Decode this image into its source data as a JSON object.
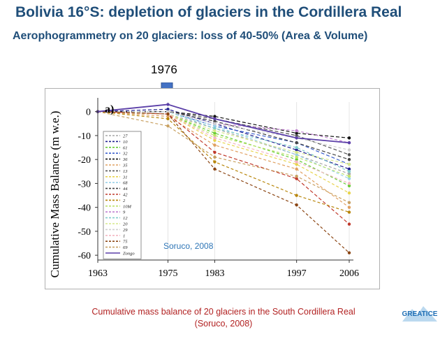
{
  "slide": {
    "title": "Bolivia  16°S:  depletion of glaciers in the Cordillera Real",
    "subtitle": "Aerophogrammetry  on 20 glaciers:  loss of 40-50%  (Area & Volume)",
    "marker_label": "1976",
    "caption_line1": "Cumulative mass balance of 20 glaciers in the South Cordillera Real",
    "caption_line2": "(Soruco, 2008)",
    "logo_text": "GREATICE"
  },
  "colors": {
    "title": "#1f4e79",
    "caption": "#b22222",
    "arrow": "#4472c4",
    "source": "#2e75b6"
  },
  "chart_data": {
    "type": "line",
    "panel_label": "a)",
    "ylabel": "Cumulative Mass Balance (m w.e.)",
    "xlabel": "",
    "source_note": "Soruco, 2008",
    "x": [
      1963,
      1975,
      1983,
      1997,
      2006
    ],
    "xticks": [
      1963,
      1975,
      1983,
      1997,
      2006
    ],
    "yticks": [
      0,
      -10,
      -20,
      -30,
      -40,
      -50,
      -60
    ],
    "xlim": [
      1963,
      2006
    ],
    "ylim": [
      -62,
      4
    ],
    "legend_position": "left",
    "series": [
      {
        "name": "27",
        "color": "#a6a6a6",
        "dash": "4,3",
        "values": [
          0,
          -1,
          -7,
          -18,
          -26
        ]
      },
      {
        "name": "10",
        "color": "#1f1f8f",
        "dash": "5,3",
        "values": [
          0,
          1,
          -5,
          -16,
          -24
        ]
      },
      {
        "name": "61",
        "color": "#66cc33",
        "dash": "4,3",
        "values": [
          0,
          -1,
          -9,
          -20,
          -31
        ]
      },
      {
        "name": "32",
        "color": "#3a5fcd",
        "dash": "5,3",
        "values": [
          0,
          0,
          -6,
          -13,
          -22
        ]
      },
      {
        "name": "36",
        "color": "#111111",
        "dash": "5,3",
        "values": [
          0,
          0,
          -2,
          -9,
          -11
        ]
      },
      {
        "name": "35",
        "color": "#e0a060",
        "dash": "4,3",
        "values": [
          0,
          -2,
          -14,
          -24,
          -40
        ]
      },
      {
        "name": "13",
        "color": "#555555",
        "dash": "5,3",
        "values": [
          0,
          0,
          -3,
          -10,
          -18
        ]
      },
      {
        "name": "31",
        "color": "#e8d44d",
        "dash": "4,3",
        "values": [
          0,
          -1,
          -12,
          -22,
          -34
        ]
      },
      {
        "name": "68",
        "color": "#99d0e8",
        "dash": "4,3",
        "values": [
          0,
          0,
          -6,
          -18,
          -28
        ]
      },
      {
        "name": "44",
        "color": "#444444",
        "dash": "5,3",
        "values": [
          0,
          0,
          -4,
          -13,
          -20
        ]
      },
      {
        "name": "42",
        "color": "#c0392b",
        "dash": "5,3",
        "values": [
          0,
          -1,
          -17,
          -28,
          -47
        ]
      },
      {
        "name": "2",
        "color": "#b8860b",
        "dash": "4,3",
        "values": [
          0,
          -3,
          -21,
          -35,
          -42
        ]
      },
      {
        "name": "10M",
        "color": "#bde36b",
        "dash": "4,3",
        "values": [
          0,
          -1,
          -10,
          -19,
          -27
        ]
      },
      {
        "name": "9",
        "color": "#c080d0",
        "dash": "4,3",
        "values": [
          0,
          0,
          -5,
          -8,
          -13
        ]
      },
      {
        "name": "12",
        "color": "#80cccc",
        "dash": "4,3",
        "values": [
          0,
          0,
          -7,
          -15,
          -25
        ]
      },
      {
        "name": "20",
        "color": "#d6e88a",
        "dash": "4,3",
        "values": [
          0,
          -1,
          -8,
          -17,
          -22
        ]
      },
      {
        "name": "29",
        "color": "#cfcfcf",
        "dash": "4,3",
        "values": [
          0,
          0,
          -5,
          -11,
          -16
        ]
      },
      {
        "name": "1",
        "color": "#f4b6c2",
        "dash": "4,3",
        "values": [
          0,
          -1,
          -11,
          -21,
          -30
        ]
      },
      {
        "name": "75",
        "color": "#8b4513",
        "dash": "4,3",
        "values": [
          0,
          -1,
          -24,
          -39,
          -59
        ]
      },
      {
        "name": "69",
        "color": "#c8a060",
        "dash": "4,3",
        "values": [
          0,
          -6,
          -19,
          -27,
          -38
        ]
      },
      {
        "name": "Zongo",
        "color": "#5b3fa8",
        "dash": "",
        "values": [
          0,
          3,
          -3,
          -11,
          -13
        ]
      }
    ]
  }
}
